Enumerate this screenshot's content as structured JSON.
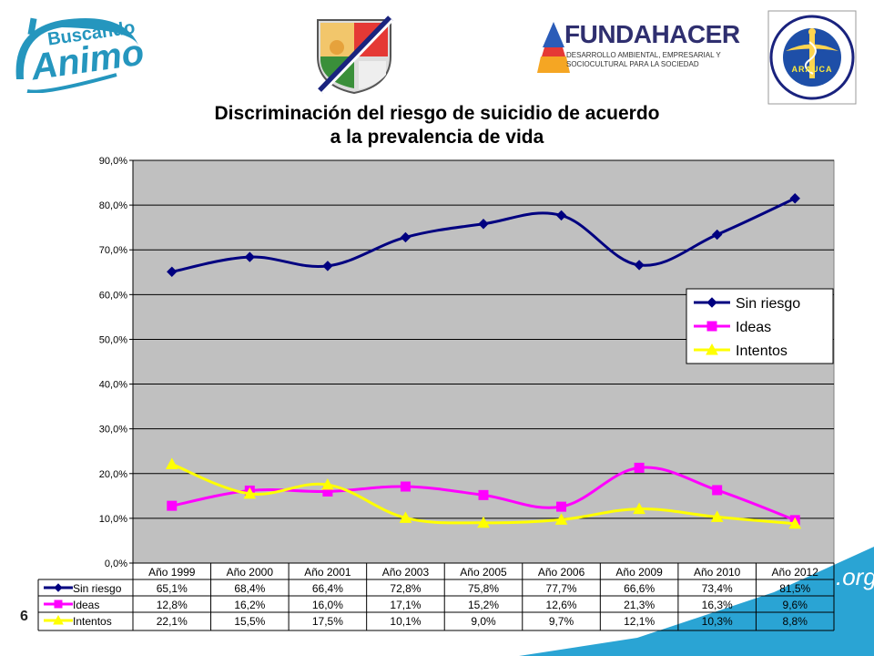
{
  "logos": {
    "left": {
      "line1": "Buscando",
      "line2": "Animo",
      "color": "#2596be"
    },
    "center_right": {
      "name": "FUNDAHACER",
      "subtitle_line1": "DESARROLLO AMBIENTAL, EMPRESARIAL Y",
      "subtitle_line2": "SOCIOCULTURAL PARA LA SOCIEDAD"
    },
    "right": {
      "ring_text": "UNIDAD ADMINISTRATIVA ESPECIAL DE SALUD",
      "inner_text": "ARAUCA"
    }
  },
  "page_number": "6",
  "corner_text": ".org",
  "chart_data": {
    "type": "line",
    "title": [
      "Discriminación del riesgo de suicidio de acuerdo",
      "a la prevalencia de vida"
    ],
    "categories": [
      "Año 1999",
      "Año 2000",
      "Año 2001",
      "Año 2003",
      "Año 2005",
      "Año 2006",
      "Año 2009",
      "Año 2010",
      "Año 2012"
    ],
    "ylim": [
      0,
      90
    ],
    "yticks": [
      0,
      10,
      20,
      30,
      40,
      50,
      60,
      70,
      80,
      90
    ],
    "ytick_labels": [
      "0,0%",
      "10,0%",
      "20,0%",
      "30,0%",
      "40,0%",
      "50,0%",
      "60,0%",
      "70,0%",
      "80,0%",
      "90,0%"
    ],
    "grid": true,
    "plot_background": "#c0c0c0",
    "legend_position": "right",
    "series": [
      {
        "name": "Sin riesgo",
        "marker": "diamond",
        "color": "#000080",
        "values": [
          65.1,
          68.4,
          66.4,
          72.8,
          75.8,
          77.7,
          66.6,
          73.4,
          81.5
        ],
        "labels": [
          "65,1%",
          "68,4%",
          "66,4%",
          "72,8%",
          "75,8%",
          "77,7%",
          "66,6%",
          "73,4%",
          "81,5%"
        ]
      },
      {
        "name": "Ideas",
        "marker": "square",
        "color": "#ff00ff",
        "values": [
          12.8,
          16.2,
          16.0,
          17.1,
          15.2,
          12.6,
          21.3,
          16.3,
          9.6
        ],
        "labels": [
          "12,8%",
          "16,2%",
          "16,0%",
          "17,1%",
          "15,2%",
          "12,6%",
          "21,3%",
          "16,3%",
          "9,6%"
        ]
      },
      {
        "name": "Intentos",
        "marker": "triangle",
        "color": "#ffff00",
        "values": [
          22.1,
          15.5,
          17.5,
          10.1,
          9.0,
          9.7,
          12.1,
          10.3,
          8.8
        ],
        "labels": [
          "22,1%",
          "15,5%",
          "17,5%",
          "10,1%",
          "9,0%",
          "9,7%",
          "12,1%",
          "10,3%",
          "8,8%"
        ]
      }
    ]
  }
}
